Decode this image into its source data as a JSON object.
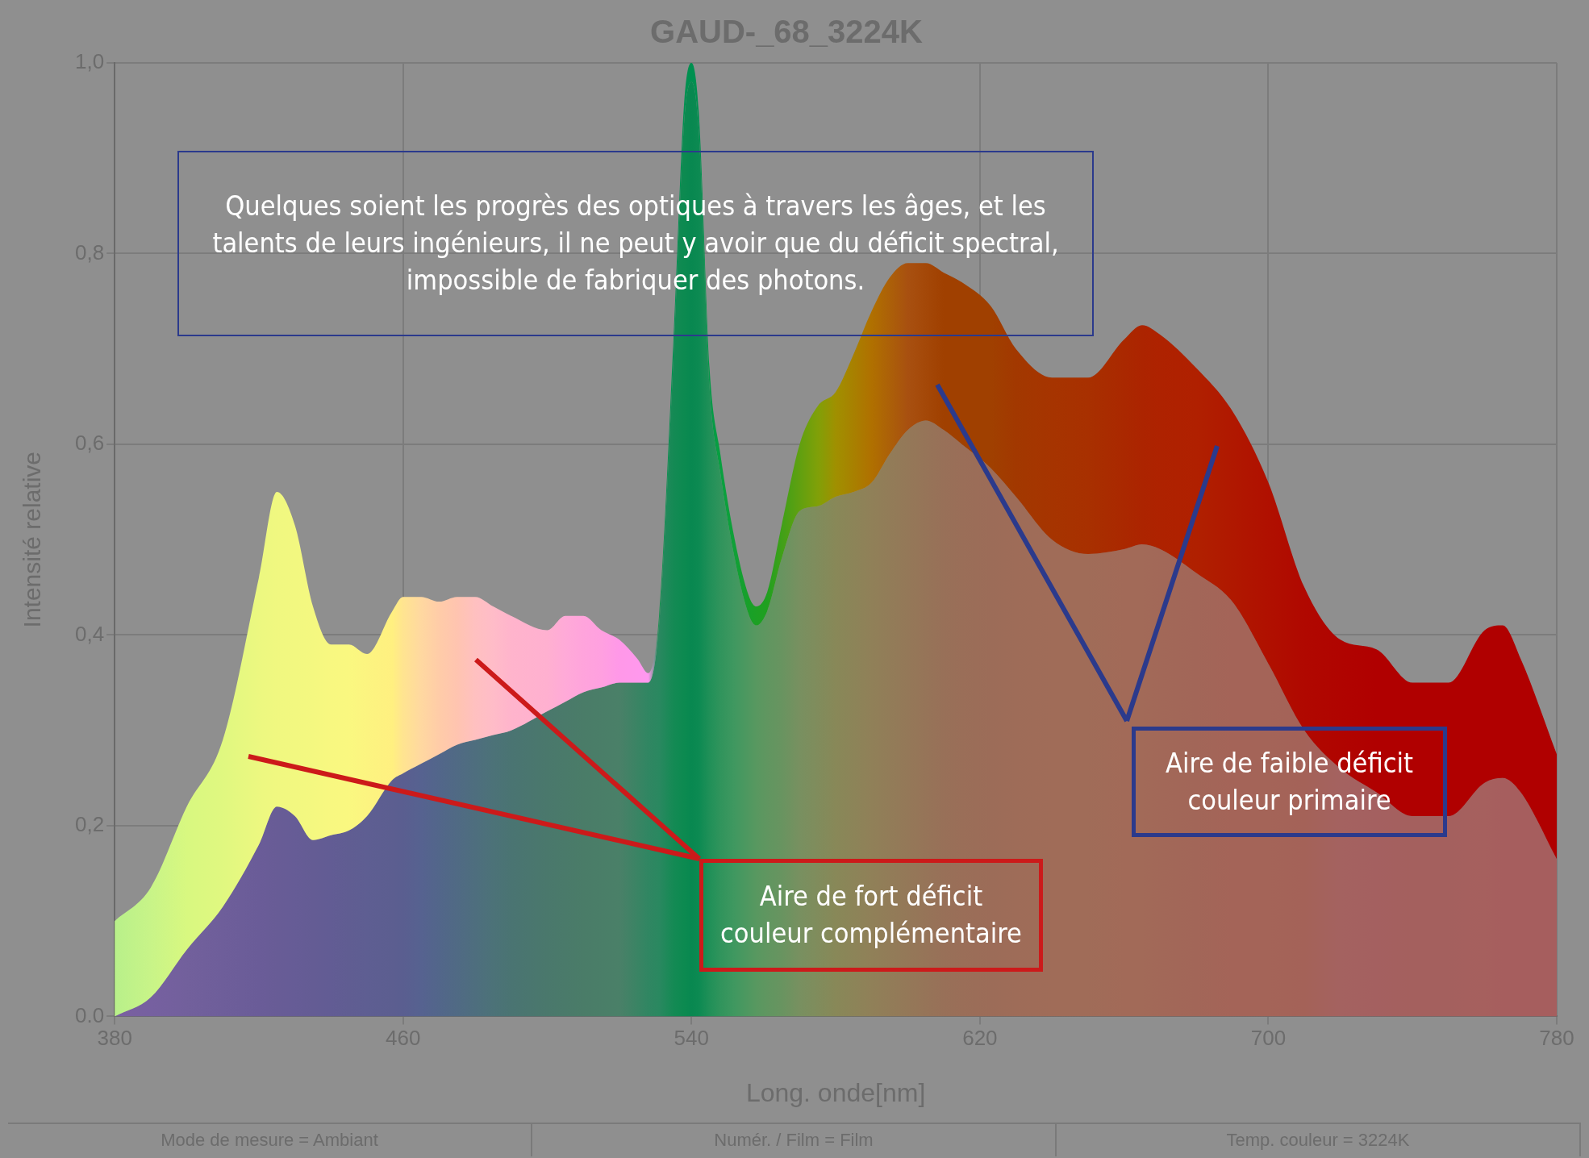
{
  "chart_data": {
    "type": "area",
    "title": "GAUD-_68_3224K",
    "xlabel": "Long. onde[nm]",
    "ylabel": "Intensité relative",
    "x": [
      380,
      390,
      400,
      410,
      420,
      425,
      430,
      435,
      440,
      445,
      450,
      457,
      460,
      465,
      470,
      475,
      480,
      485,
      490,
      500,
      505,
      510,
      515,
      520,
      525,
      528,
      531,
      535,
      538,
      540,
      542,
      545,
      548,
      552,
      556,
      558,
      561,
      565,
      570,
      575,
      580,
      585,
      590,
      595,
      600,
      605,
      610,
      615,
      623,
      630,
      640,
      650,
      660,
      665,
      670,
      680,
      690,
      700,
      710,
      720,
      730,
      740,
      750,
      760,
      765,
      770,
      780
    ],
    "series": [
      {
        "values": [
          0,
          0.02,
          0.07,
          0.115,
          0.18,
          0.22,
          0.21,
          0.185,
          0.19,
          0.195,
          0.21,
          0.248,
          0.255,
          0.265,
          0.275,
          0.285,
          0.29,
          0.295,
          0.3,
          0.32,
          0.33,
          0.34,
          0.345,
          0.35,
          0.35,
          0.35,
          0.41,
          0.69,
          0.94,
          0.98,
          0.93,
          0.66,
          0.57,
          0.48,
          0.42,
          0.41,
          0.425,
          0.48,
          0.53,
          0.535,
          0.545,
          0.55,
          0.56,
          0.59,
          0.615,
          0.625,
          0.615,
          0.6,
          0.575,
          0.545,
          0.5,
          0.485,
          0.49,
          0.495,
          0.49,
          0.465,
          0.435,
          0.37,
          0.3,
          0.26,
          0.235,
          0.21,
          0.21,
          0.245,
          0.25,
          0.235,
          0.165
        ],
        "colors": [
          "#7a60a0",
          "#7660a0",
          "#72609c",
          "#6e5e9a",
          "#6a5c98",
          "#685c96",
          "#665c96",
          "#645c94",
          "#625c94",
          "#605d92",
          "#5e5e92",
          "#5c5e90",
          "#5a5e90",
          "#566290",
          "#52668a",
          "#506a84",
          "#4e6e7e",
          "#4c7278",
          "#4a7472",
          "#4a786c",
          "#4a7a6a",
          "#4a7c68",
          "#4a7e68",
          "#4a8068",
          "#3a8464",
          "#308662",
          "#2a8860",
          "#148a54",
          "#0c8a50",
          "#088850",
          "#0c8a52",
          "#209058",
          "#30945c",
          "#409860",
          "#509860",
          "#589860",
          "#609660",
          "#689460",
          "#789060",
          "#808c5c",
          "#888858",
          "#8c8458",
          "#908058",
          "#927c58",
          "#947858",
          "#967458",
          "#987058",
          "#9a6e58",
          "#9c6c58",
          "#9e6c58",
          "#a06c58",
          "#a06c58",
          "#a26a58",
          "#a26a58",
          "#a26858",
          "#a26658",
          "#a46458",
          "#a46458",
          "#a46258",
          "#a46260",
          "#a46060",
          "#a4605e",
          "#a4605e",
          "#a6605e",
          "#a65e5e",
          "#a65e5e",
          "#a65e5e"
        ]
      },
      {
        "values": [
          0.1,
          0.135,
          0.22,
          0.29,
          0.46,
          0.55,
          0.515,
          0.43,
          0.39,
          0.39,
          0.38,
          0.425,
          0.44,
          0.44,
          0.435,
          0.44,
          0.44,
          0.43,
          0.42,
          0.405,
          0.42,
          0.42,
          0.405,
          0.395,
          0.375,
          0.36,
          0.42,
          0.71,
          0.96,
          1.0,
          0.95,
          0.68,
          0.59,
          0.5,
          0.44,
          0.43,
          0.445,
          0.515,
          0.6,
          0.64,
          0.655,
          0.695,
          0.74,
          0.775,
          0.79,
          0.79,
          0.78,
          0.77,
          0.745,
          0.7,
          0.67,
          0.67,
          0.71,
          0.725,
          0.715,
          0.68,
          0.635,
          0.56,
          0.45,
          0.395,
          0.385,
          0.35,
          0.35,
          0.405,
          0.41,
          0.375,
          0.275
        ],
        "colors": [
          "#b8f08a",
          "#c8f488",
          "#d8f880",
          "#e0f880",
          "#ecf880",
          "#f0f880",
          "#f2f880",
          "#f4f880",
          "#f8f880",
          "#faf880",
          "#fcf480",
          "#fff080",
          "#ffe490",
          "#ffd8a0",
          "#ffcca8",
          "#ffc4b0",
          "#ffc0c0",
          "#ffbcc8",
          "#ffb4cc",
          "#ffb0d0",
          "#ffaad8",
          "#ffa4dc",
          "#ffa0e0",
          "#ff98e8",
          "#ff98ec",
          "#ff98f0",
          "#1a9050",
          "#009050",
          "#009050",
          "#009050",
          "#009050",
          "#049848",
          "#08a040",
          "#10a038",
          "#18a028",
          "#1ca024",
          "#20a020",
          "#40a018",
          "#60a010",
          "#80a008",
          "#a09000",
          "#a88000",
          "#b07000",
          "#ac6008",
          "#a85010",
          "#a44808",
          "#a04000",
          "#a04000",
          "#a04000",
          "#a23800",
          "#a63400",
          "#a83000",
          "#aa2800",
          "#ac2400",
          "#ae2200",
          "#b02000",
          "#b01800",
          "#b01000",
          "#b00800",
          "#b00400",
          "#b00000",
          "#b00000",
          "#b00000",
          "#b00000",
          "#b00000",
          "#b00000",
          "#b00000"
        ]
      }
    ],
    "xlim": [
      380,
      780
    ],
    "xticks": [
      380,
      460,
      540,
      620,
      700,
      780
    ],
    "ylim": [
      0,
      1
    ],
    "yticks": [
      {
        "value": 0,
        "label": "0.0"
      },
      {
        "value": 0.2,
        "label": "0,2"
      },
      {
        "value": 0.4,
        "label": "0,4"
      },
      {
        "value": 0.6,
        "label": "0,6"
      },
      {
        "value": 0.8,
        "label": "0,8"
      },
      {
        "value": 1,
        "label": "1,0"
      }
    ],
    "grid": true,
    "annotations": [
      "Quelques soient les progrès des optiques à travers les âges, et les talents de leurs ingénieurs, il ne peut y avoir que du déficit spectral, impossible de fabriquer des photons.",
      "Aire de fort déficit couleur complémentaire",
      "Aire de faible déficit couleur primaire",
      "Mode de mesure = Ambiant",
      "Numér. / Film = Film",
      "Temp. couleur = 3224K"
    ]
  }
}
